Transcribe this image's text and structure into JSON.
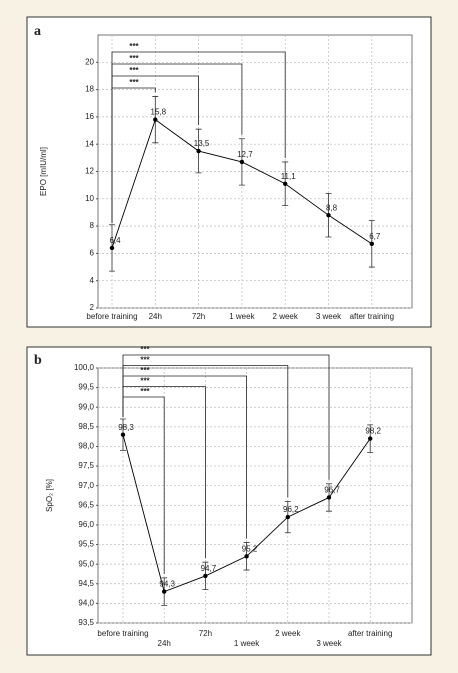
{
  "chart_data": [
    {
      "type": "line",
      "panel": "a",
      "ylabel": "EPO [mIU/ml]",
      "categories": [
        "before training",
        "24h",
        "72h",
        "1 week",
        "2 week",
        "3 week",
        "after training"
      ],
      "values": [
        6.4,
        15.8,
        13.5,
        12.7,
        11.1,
        8.8,
        6.7
      ],
      "value_labels": [
        "6,4",
        "15,8",
        "13,5",
        "12,7",
        "11,1",
        "8,8",
        "6,7"
      ],
      "errors": [
        1.7,
        1.7,
        1.6,
        1.7,
        1.6,
        1.6,
        1.7
      ],
      "color": "#000000",
      "ylim": [
        2,
        22
      ],
      "yticks": [
        2,
        4,
        6,
        8,
        10,
        12,
        14,
        16,
        18,
        20
      ],
      "grid": true,
      "brackets": [
        {
          "from": "before training",
          "to": "24h",
          "label": "***"
        },
        {
          "from": "before training",
          "to": "72h",
          "label": "***"
        },
        {
          "from": "before training",
          "to": "1 week",
          "label": "***"
        },
        {
          "from": "before training",
          "to": "2 week",
          "label": "***"
        }
      ]
    },
    {
      "type": "line",
      "panel": "b",
      "ylabel": "SpO₂ [%]",
      "categories": [
        "before training",
        "24h",
        "72h",
        "1 week",
        "2 week",
        "3 week",
        "after training"
      ],
      "values": [
        98.3,
        94.3,
        94.7,
        95.2,
        96.2,
        96.7,
        98.2
      ],
      "value_labels": [
        "98,3",
        "94,3",
        "94,7",
        "95,2",
        "96,2",
        "96,7",
        "98,2"
      ],
      "errors": [
        0.4,
        0.35,
        0.35,
        0.35,
        0.4,
        0.35,
        0.35
      ],
      "color": "#000000",
      "ylim": [
        93.5,
        100
      ],
      "yticks": [
        {
          "value": 93.5,
          "label": "93,5"
        },
        {
          "value": 94,
          "label": "94,0"
        },
        {
          "value": 94.5,
          "label": "94,5"
        },
        {
          "value": 95,
          "label": "95,0"
        },
        {
          "value": 95.5,
          "label": "95,5"
        },
        {
          "value": 96,
          "label": "96,0"
        },
        {
          "value": 96.5,
          "label": "96,5"
        },
        {
          "value": 97,
          "label": "97,0"
        },
        {
          "value": 97.5,
          "label": "97,5"
        },
        {
          "value": 98,
          "label": "98,0"
        },
        {
          "value": 98.5,
          "label": "98,5"
        },
        {
          "value": 99,
          "label": "99,0"
        },
        {
          "value": 99.5,
          "label": "99,5"
        },
        {
          "value": 100,
          "label": "100,0"
        }
      ],
      "grid": true,
      "brackets": [
        {
          "from": "before training",
          "to": "24h",
          "label": "***"
        },
        {
          "from": "before training",
          "to": "72h",
          "label": "***"
        },
        {
          "from": "before training",
          "to": "1 week",
          "label": "***"
        },
        {
          "from": "before training",
          "to": "2 week",
          "label": "***"
        },
        {
          "from": "before training",
          "to": "3 week",
          "label": "***"
        }
      ]
    }
  ]
}
